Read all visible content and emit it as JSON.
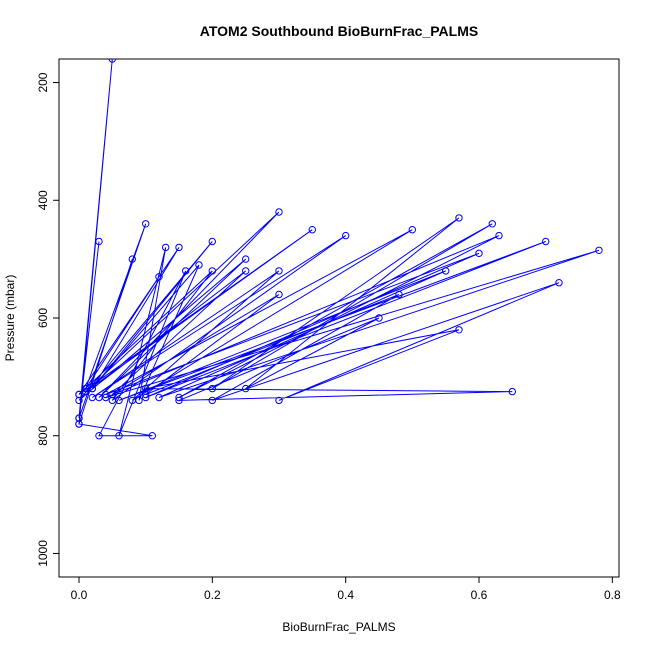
{
  "chart_data": {
    "type": "line",
    "title": "ATOM2 Southbound BioBurnFrac_PALMS",
    "xlabel": "BioBurnFrac_PALMS",
    "ylabel": "Pressure (mbar)",
    "xlim": [
      -0.03,
      0.81
    ],
    "ylim": [
      1040,
      160
    ],
    "y_reversed": true,
    "x_ticks": [
      0.0,
      0.2,
      0.4,
      0.6,
      0.8
    ],
    "x_tick_labels": [
      "0.0",
      "0.2",
      "0.4",
      "0.6",
      "0.8"
    ],
    "y_ticks": [
      200,
      400,
      600,
      800,
      1000
    ],
    "y_tick_labels": [
      "200",
      "400",
      "600",
      "800",
      "1000"
    ],
    "grid": false,
    "color": "#0000ff",
    "series": [
      {
        "x": [
          0.0,
          0.05,
          0.0,
          0.03,
          0.0,
          0.1,
          0.01,
          0.12,
          0.0,
          0.15,
          0.02,
          0.2,
          0.0,
          0.25,
          0.03,
          0.3,
          0.01,
          0.35,
          0.0,
          0.2,
          0.05,
          0.4,
          0.02,
          0.3,
          0.08,
          0.5,
          0.04,
          0.6,
          0.1,
          0.7,
          0.06,
          0.55,
          0.12,
          0.78,
          0.04,
          0.63,
          0.15,
          0.62,
          0.2,
          0.57,
          0.25,
          0.45,
          0.15,
          0.65,
          0.1,
          0.57,
          0.3,
          0.72,
          0.2,
          0.48,
          0.1,
          0.3,
          0.05,
          0.25,
          0.02,
          0.18,
          0.09,
          0.13,
          0.06,
          0.16,
          0.03,
          0.11,
          0.0,
          0.08
        ],
        "y": [
          780,
          160,
          770,
          470,
          770,
          440,
          720,
          530,
          730,
          480,
          720,
          470,
          740,
          500,
          735,
          420,
          725,
          450,
          730,
          520,
          740,
          460,
          735,
          520,
          740,
          450,
          730,
          490,
          735,
          470,
          740,
          520,
          735,
          485,
          735,
          460,
          735,
          440,
          720,
          430,
          720,
          600,
          740,
          725,
          720,
          620,
          740,
          540,
          740,
          560,
          730,
          560,
          730,
          520,
          720,
          510,
          740,
          480,
          800,
          520,
          800,
          800,
          780,
          500
        ]
      }
    ]
  }
}
